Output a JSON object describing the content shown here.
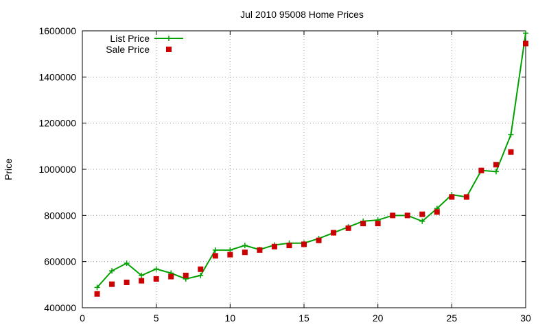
{
  "chart_data": {
    "type": "line",
    "title": "Jul 2010 95008 Home Prices",
    "xlabel": "",
    "ylabel": "Price",
    "xlim": [
      0,
      30
    ],
    "ylim": [
      400000,
      1600000
    ],
    "x_ticks": [
      0,
      5,
      10,
      15,
      20,
      25,
      30
    ],
    "y_ticks": [
      400000,
      600000,
      800000,
      1000000,
      1200000,
      1400000,
      1600000
    ],
    "grid": true,
    "legend_position": "top-left",
    "x": [
      1,
      2,
      3,
      4,
      5,
      6,
      7,
      8,
      9,
      10,
      11,
      12,
      13,
      14,
      15,
      16,
      17,
      18,
      19,
      20,
      21,
      22,
      23,
      24,
      25,
      26,
      27,
      28,
      29,
      30
    ],
    "series": [
      {
        "name": "List Price",
        "style": "line-with-plus-markers",
        "color": "#00a000",
        "values": [
          488000,
          560000,
          593000,
          540000,
          568000,
          550000,
          525000,
          540000,
          650000,
          650000,
          670000,
          652000,
          672000,
          680000,
          680000,
          700000,
          725000,
          750000,
          775000,
          780000,
          800000,
          800000,
          775000,
          830000,
          890000,
          880000,
          995000,
          990000,
          1150000,
          1590000
        ]
      },
      {
        "name": "Sale Price",
        "style": "square-markers",
        "color": "#cc0000",
        "values": [
          460000,
          502000,
          510000,
          517000,
          525000,
          535000,
          540000,
          567000,
          625000,
          630000,
          640000,
          650000,
          665000,
          670000,
          675000,
          692000,
          725000,
          745000,
          765000,
          765000,
          800000,
          800000,
          805000,
          815000,
          880000,
          880000,
          995000,
          1020000,
          1075000,
          1545000
        ]
      }
    ]
  }
}
